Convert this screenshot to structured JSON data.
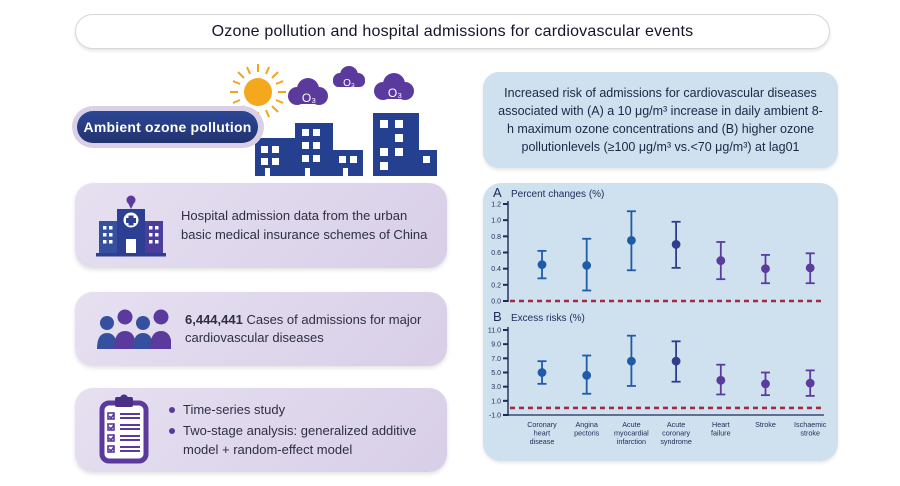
{
  "title": "Ozone pollution and hospital admissions for cardiovascular events",
  "badge": {
    "label": "Ambient ozone pollution"
  },
  "illustration": {
    "ozone": "O₃"
  },
  "cards": [
    {
      "icon": "hospital-icon",
      "text": "Hospital admission data from the urban basic medical insurance schemes of China"
    },
    {
      "icon": "people-icon",
      "highlight": "6,444,441",
      "text": " Cases of admissions for major cardiovascular diseases"
    },
    {
      "icon": "clipboard-icon",
      "bullets": [
        "Time-series study",
        "Two-stage analysis: generalized additive model + random-effect model"
      ]
    }
  ],
  "summary_box": {
    "text": "Increased risk of admissions for cardiovascular diseases associated with (A) a 10 μg/m³ increase in daily ambient 8-h maximum ozone concentrations and (B) higher ozone pollutionlevels (≥100 μg/m³ vs.<70 μg/m³) at lag01"
  },
  "chart_data": {
    "type": "scatter",
    "subtype": "forest-plot-dot-with-95CI",
    "categories": [
      "Coronary heart disease",
      "Angina pectoris",
      "Acute myocardial infarction",
      "Acute coronary syndrome",
      "Heart failure",
      "Stroke",
      "Ischaemic stroke"
    ],
    "point_colors": [
      "#1f5ca8",
      "#1f5ca8",
      "#1f5ca8",
      "#2c3e8c",
      "#5c3b9e",
      "#5c3b9e",
      "#5c3b9e"
    ],
    "axis_color": "#1e2a5a",
    "ref_line_color": "#a22b42",
    "panels": [
      {
        "id": "A",
        "title": "Percent changes (%)",
        "ylim": [
          0.0,
          1.2
        ],
        "yticks": [
          0.0,
          0.2,
          0.4,
          0.6,
          0.8,
          1.0,
          1.2
        ],
        "ref_line": 0.0,
        "points": [
          {
            "value": 0.45,
            "lo": 0.28,
            "hi": 0.62
          },
          {
            "value": 0.44,
            "lo": 0.13,
            "hi": 0.77
          },
          {
            "value": 0.75,
            "lo": 0.38,
            "hi": 1.11
          },
          {
            "value": 0.7,
            "lo": 0.41,
            "hi": 0.98
          },
          {
            "value": 0.5,
            "lo": 0.27,
            "hi": 0.73
          },
          {
            "value": 0.4,
            "lo": 0.22,
            "hi": 0.57
          },
          {
            "value": 0.41,
            "lo": 0.22,
            "hi": 0.59
          }
        ]
      },
      {
        "id": "B",
        "title": "Excess risks (%)",
        "ylim": [
          -1.0,
          11.0
        ],
        "yticks": [
          -1.0,
          1.0,
          3.0,
          5.0,
          7.0,
          9.0,
          11.0
        ],
        "ref_line": 0.0,
        "points": [
          {
            "value": 5.0,
            "lo": 3.4,
            "hi": 6.6
          },
          {
            "value": 4.6,
            "lo": 2.0,
            "hi": 7.4
          },
          {
            "value": 6.6,
            "lo": 3.1,
            "hi": 10.2
          },
          {
            "value": 6.6,
            "lo": 3.7,
            "hi": 9.4
          },
          {
            "value": 3.9,
            "lo": 1.9,
            "hi": 6.1
          },
          {
            "value": 3.4,
            "lo": 1.8,
            "hi": 5.0
          },
          {
            "value": 3.5,
            "lo": 1.7,
            "hi": 5.3
          }
        ]
      }
    ]
  },
  "colors": {
    "card_bg": "#dcd3e8",
    "blue_box_bg": "#cfe1ee",
    "badge_bg": "#24408e",
    "building_blue": "#24408e",
    "cloud_purple": "#5b3a9e",
    "sun_yellow": "#f2a71b",
    "ref_dashed_red": "#a22b42"
  }
}
